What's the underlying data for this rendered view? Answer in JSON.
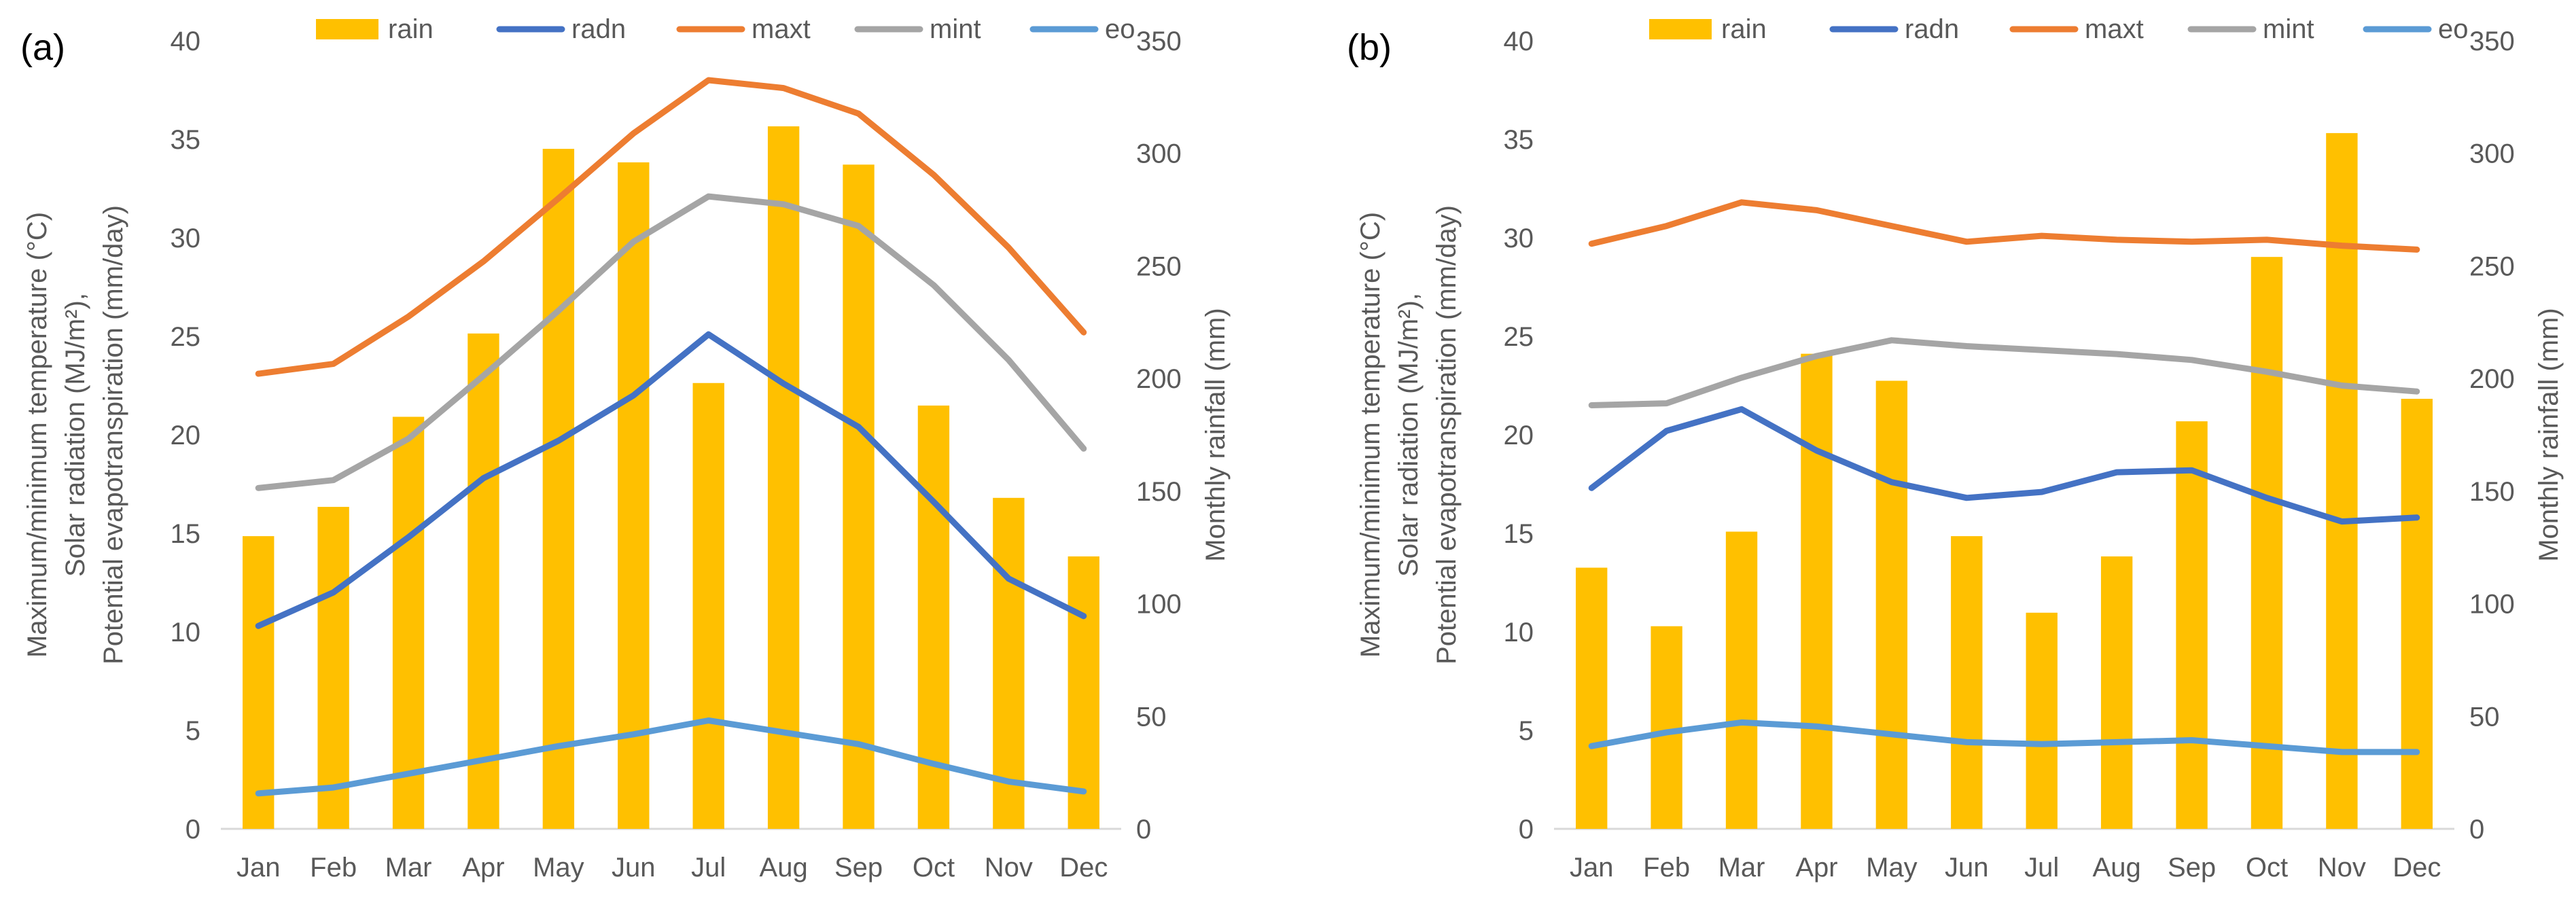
{
  "colors": {
    "rain": "#FFC000",
    "radn": "#4472C4",
    "maxt": "#ED7D31",
    "mint": "#A5A5A5",
    "eo": "#5B9BD5",
    "axis_text": "#595959",
    "axis_line": "#D9D9D9"
  },
  "chart_data": [
    {
      "panel_label": "(a)",
      "type": "bar+line",
      "categories": [
        "Jan",
        "Feb",
        "Mar",
        "Apr",
        "May",
        "Jun",
        "Jul",
        "Aug",
        "Sep",
        "Oct",
        "Nov",
        "Dec"
      ],
      "legend": [
        "rain",
        "radn",
        "maxt",
        "mint",
        "eo"
      ],
      "ylabel_left_lines": [
        "Maximum/minimum temperature (°C)",
        "Solar radiation (MJ/m²),",
        "Potential evapotranspiration (mm/day)"
      ],
      "ylabel_right": "Monthly rainfall (mm)",
      "ylim_left": [
        0,
        40
      ],
      "yticks_left": [
        "0",
        "5",
        "10",
        "15",
        "20",
        "25",
        "30",
        "35",
        "40"
      ],
      "ylim_right": [
        0,
        350
      ],
      "yticks_right": [
        "0",
        "50",
        "100",
        "150",
        "200",
        "250",
        "300",
        "350"
      ],
      "series": [
        {
          "name": "rain",
          "kind": "bar",
          "axis": "right",
          "values": [
            130,
            143,
            183,
            220,
            302,
            296,
            198,
            312,
            295,
            188,
            147,
            121
          ]
        },
        {
          "name": "radn",
          "kind": "line",
          "axis": "left",
          "values": [
            10.3,
            12.0,
            14.8,
            17.8,
            19.7,
            22.0,
            25.1,
            22.6,
            20.4,
            16.6,
            12.7,
            10.8
          ]
        },
        {
          "name": "maxt",
          "kind": "line",
          "axis": "left",
          "values": [
            23.1,
            23.6,
            26.0,
            28.8,
            32.0,
            35.3,
            38.0,
            37.6,
            36.3,
            33.2,
            29.5,
            25.2
          ]
        },
        {
          "name": "mint",
          "kind": "line",
          "axis": "left",
          "values": [
            17.3,
            17.7,
            19.8,
            23.0,
            26.3,
            29.8,
            32.1,
            31.7,
            30.6,
            27.6,
            23.8,
            19.3
          ]
        },
        {
          "name": "eo",
          "kind": "line",
          "axis": "left",
          "values": [
            1.8,
            2.1,
            2.8,
            3.5,
            4.2,
            4.8,
            5.5,
            4.9,
            4.3,
            3.3,
            2.4,
            1.9
          ]
        }
      ]
    },
    {
      "panel_label": "(b)",
      "type": "bar+line",
      "categories": [
        "Jan",
        "Feb",
        "Mar",
        "Apr",
        "May",
        "Jun",
        "Jul",
        "Aug",
        "Sep",
        "Oct",
        "Nov",
        "Dec"
      ],
      "legend": [
        "rain",
        "radn",
        "maxt",
        "mint",
        "eo"
      ],
      "ylabel_left_lines": [
        "Maximum/minimum temperature (°C)",
        "Solar radiation (MJ/m²),",
        "Potential evapotranspiration (mm/day)"
      ],
      "ylabel_right": "Monthly rainfall (mm)",
      "ylim_left": [
        0,
        40
      ],
      "yticks_left": [
        "0",
        "5",
        "10",
        "15",
        "20",
        "25",
        "30",
        "35",
        "40"
      ],
      "ylim_right": [
        0,
        350
      ],
      "yticks_right": [
        "0",
        "50",
        "100",
        "150",
        "200",
        "250",
        "300",
        "350"
      ],
      "series": [
        {
          "name": "rain",
          "kind": "bar",
          "axis": "right",
          "values": [
            116,
            90,
            132,
            211,
            199,
            130,
            96,
            121,
            181,
            254,
            309,
            191
          ]
        },
        {
          "name": "radn",
          "kind": "line",
          "axis": "left",
          "values": [
            17.3,
            20.2,
            21.3,
            19.2,
            17.6,
            16.8,
            17.1,
            18.1,
            18.2,
            16.8,
            15.6,
            15.8
          ]
        },
        {
          "name": "maxt",
          "kind": "line",
          "axis": "left",
          "values": [
            29.7,
            30.6,
            31.8,
            31.4,
            30.6,
            29.8,
            30.1,
            29.9,
            29.8,
            29.9,
            29.6,
            29.4
          ]
        },
        {
          "name": "mint",
          "kind": "line",
          "axis": "left",
          "values": [
            21.5,
            21.6,
            22.9,
            24.0,
            24.8,
            24.5,
            24.3,
            24.1,
            23.8,
            23.2,
            22.5,
            22.2
          ]
        },
        {
          "name": "eo",
          "kind": "line",
          "axis": "left",
          "values": [
            4.2,
            4.9,
            5.4,
            5.2,
            4.8,
            4.4,
            4.3,
            4.4,
            4.5,
            4.2,
            3.9,
            3.9
          ]
        }
      ]
    }
  ]
}
